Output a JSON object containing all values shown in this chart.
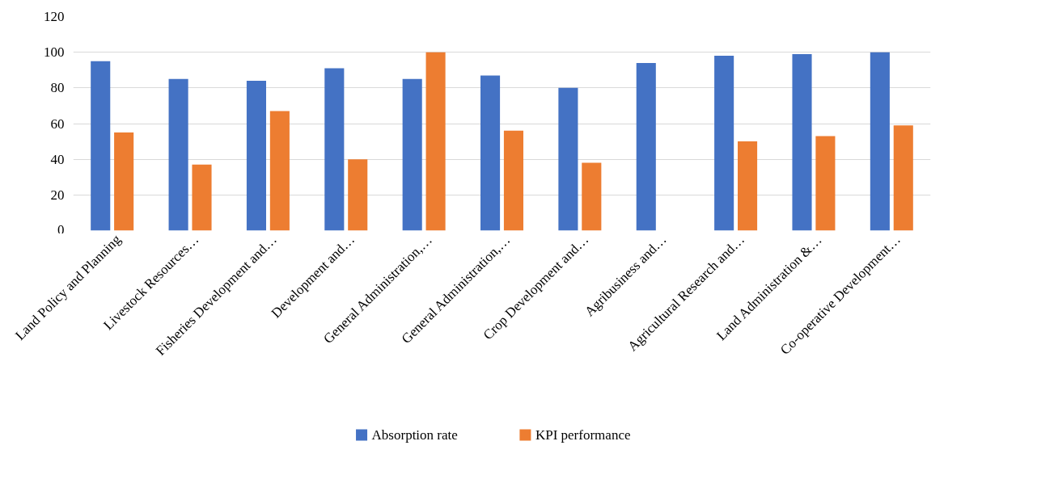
{
  "chart_data": {
    "type": "bar",
    "categories": [
      "Land Policy and Planning",
      "Livestock Resources…",
      "Fisheries Development and…",
      "Development and…",
      "General Administration,…",
      "General Administration,…",
      "Crop Development and…",
      "Agribusiness and…",
      "Agricultural Research and…",
      "Land Administration &…",
      "Co-operative Development…"
    ],
    "series": [
      {
        "name": "Absorption rate",
        "color": "#4472c4",
        "values": [
          95,
          85,
          84,
          91,
          85,
          87,
          80,
          94,
          98,
          99,
          100
        ]
      },
      {
        "name": "KPI performance",
        "color": "#ed7d31",
        "values": [
          55,
          37,
          67,
          40,
          100,
          56,
          38,
          null,
          50,
          53,
          59
        ]
      }
    ],
    "ylim": [
      0,
      120
    ],
    "yticks": [
      0,
      20,
      40,
      60,
      80,
      100,
      120
    ],
    "grid": "y",
    "legend": "bottom"
  }
}
